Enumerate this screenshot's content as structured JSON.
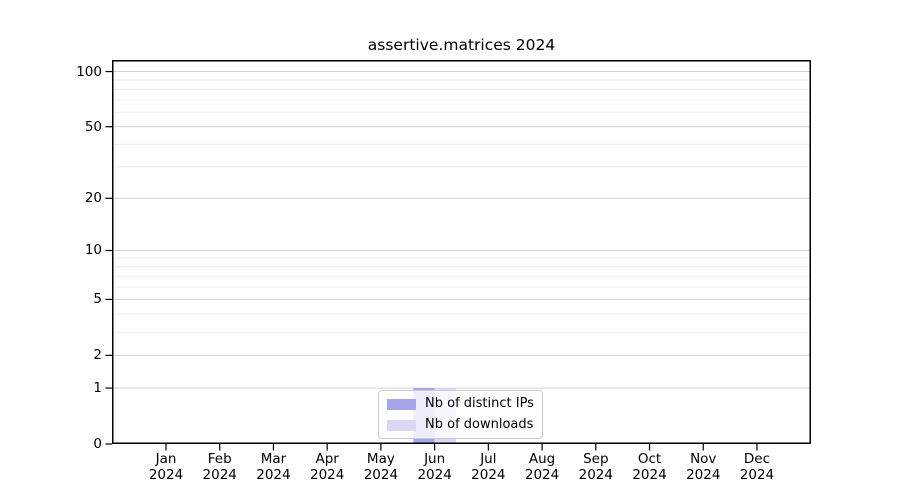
{
  "chart_data": {
    "type": "bar",
    "title": "assertive.matrices 2024",
    "categories": [
      "Jan",
      "Feb",
      "Mar",
      "Apr",
      "May",
      "Jun",
      "Jul",
      "Aug",
      "Sep",
      "Oct",
      "Nov",
      "Dec"
    ],
    "category_year": "2024",
    "series": [
      {
        "name": "Nb of distinct IPs",
        "color": "#a5a5ec",
        "values": [
          0,
          0,
          0,
          0,
          0,
          1,
          0,
          0,
          0,
          0,
          0,
          0
        ]
      },
      {
        "name": "Nb of downloads",
        "color": "#d8d8f5",
        "values": [
          0,
          0,
          0,
          0,
          0,
          1,
          0,
          0,
          0,
          0,
          0,
          0
        ]
      }
    ],
    "xlabel": "",
    "ylabel": "",
    "yscale": "log1p",
    "ylim": [
      0,
      116
    ],
    "yticks": [
      100,
      50,
      20,
      10,
      5,
      2,
      1,
      0
    ],
    "minor_gridlines": [
      90,
      80,
      70,
      60,
      40,
      30,
      9,
      8,
      7,
      6,
      4,
      3
    ],
    "grid": true,
    "legend_position": "lower center inside",
    "colors": {
      "axis": "#000000",
      "major_grid": "#d2d2d2",
      "minor_grid": "#ececec",
      "legend_border": "#cbcbcb",
      "background": "#ffffff"
    }
  }
}
